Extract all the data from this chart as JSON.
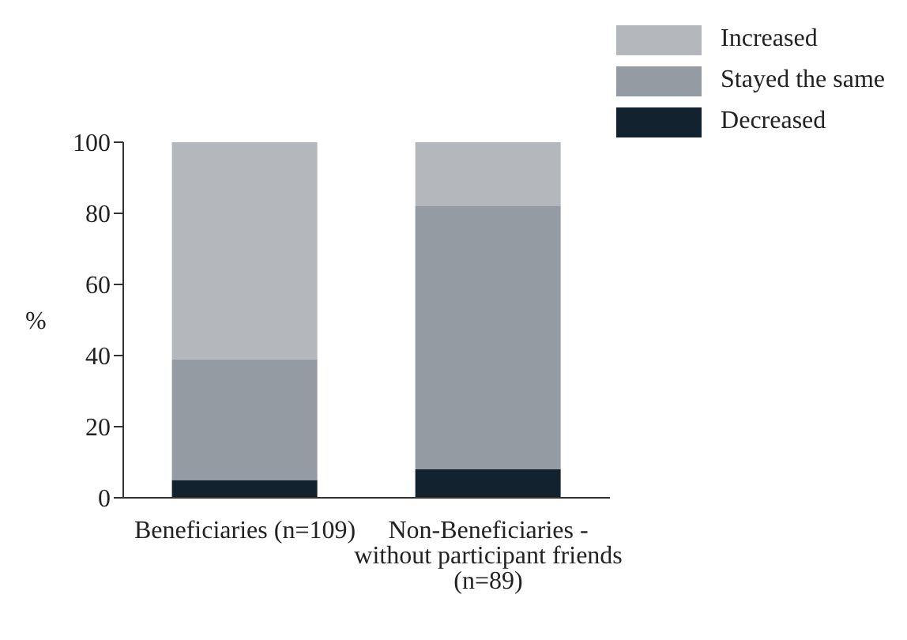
{
  "chart_data": {
    "type": "bar",
    "stacked": true,
    "ylabel": "%",
    "categories": [
      "Beneficiaries (n=109)",
      "Non-Beneficiaries - without participant friends (n=89)"
    ],
    "series": [
      {
        "name": "Decreased",
        "color": "#12232f",
        "values": [
          5,
          8
        ]
      },
      {
        "name": "Stayed the same",
        "color": "#959ba2",
        "values": [
          34,
          74
        ]
      },
      {
        "name": "Increased",
        "color": "#b4b8bc",
        "values": [
          61,
          18
        ]
      }
    ],
    "ylim": [
      0,
      100
    ],
    "yticks": [
      0,
      20,
      40,
      60,
      80,
      100
    ],
    "grid": false,
    "legend": "top right"
  }
}
